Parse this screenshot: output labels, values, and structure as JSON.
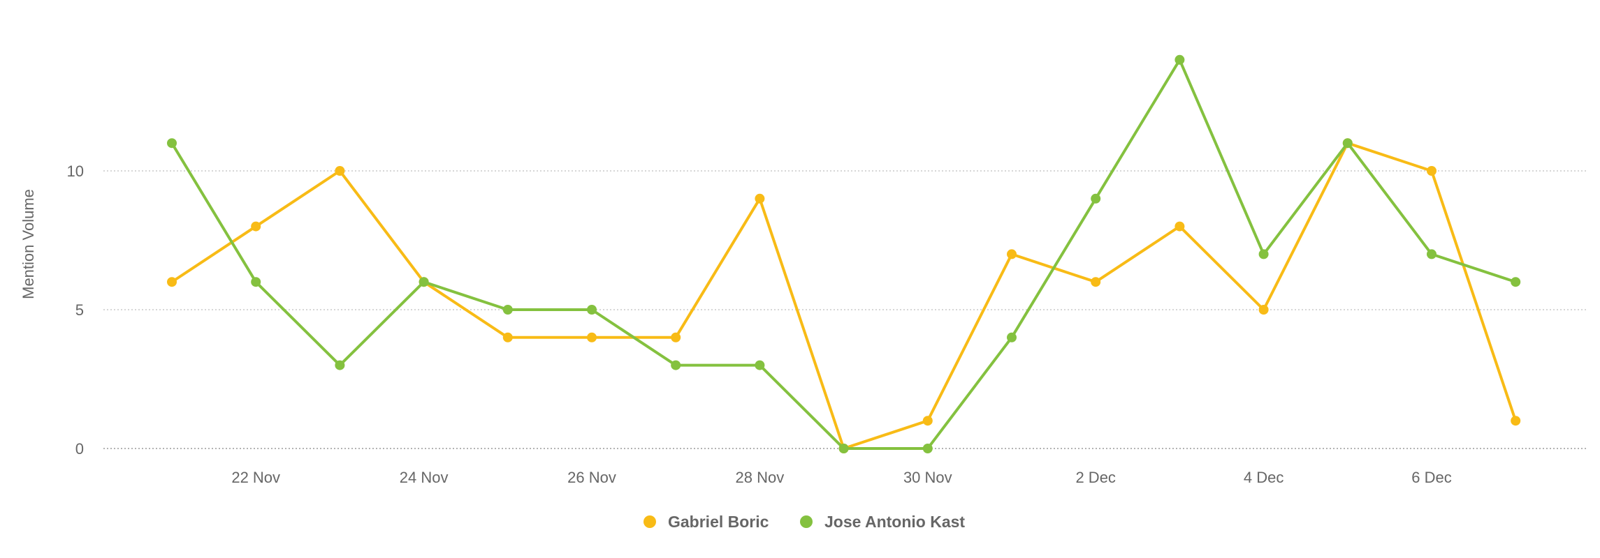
{
  "chart_data": {
    "type": "line",
    "x": [
      "2021-11-21",
      "2021-11-22",
      "2021-11-23",
      "2021-11-24",
      "2021-11-25",
      "2021-11-26",
      "2021-11-27",
      "2021-11-28",
      "2021-11-29",
      "2021-11-30",
      "2021-12-01",
      "2021-12-02",
      "2021-12-03",
      "2021-12-04",
      "2021-12-05",
      "2021-12-06",
      "2021-12-07"
    ],
    "x_tick_labels": [
      "22 Nov",
      "24 Nov",
      "26 Nov",
      "28 Nov",
      "30 Nov",
      "2 Dec",
      "4 Dec",
      "6 Dec"
    ],
    "x_tick_dates": [
      "2021-11-22",
      "2021-11-24",
      "2021-11-26",
      "2021-11-28",
      "2021-11-30",
      "2021-12-02",
      "2021-12-04",
      "2021-12-06"
    ],
    "y_ticks": [
      0,
      5,
      10
    ],
    "ylim": [
      0,
      15
    ],
    "ylabel": "Mention Volume",
    "xlabel": "",
    "title": "",
    "grid": true,
    "legend": "bottom-center",
    "series": [
      {
        "name": "Gabriel Boric",
        "color": "#F8BB16",
        "values": [
          6,
          8,
          10,
          6,
          4,
          4,
          4,
          9,
          0,
          1,
          7,
          6,
          8,
          5,
          11,
          10,
          1
        ]
      },
      {
        "name": "Jose Antonio Kast",
        "color": "#84C13F",
        "values": [
          11,
          6,
          3,
          6,
          5,
          5,
          3,
          3,
          0,
          0,
          4,
          9,
          14,
          7,
          11,
          7,
          6
        ]
      }
    ]
  }
}
